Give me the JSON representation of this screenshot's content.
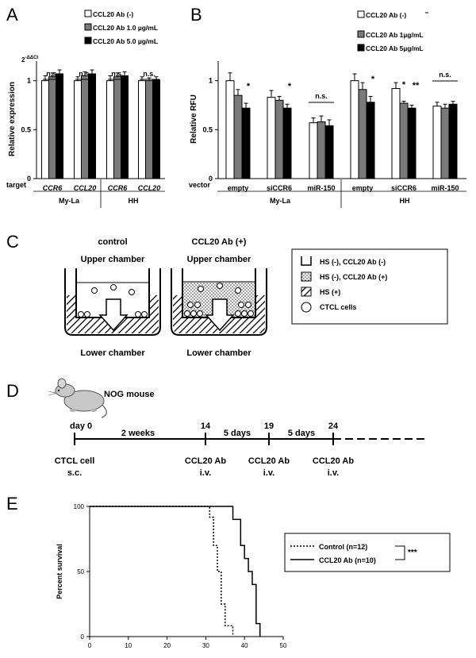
{
  "panels": {
    "A": {
      "letter": "A",
      "y_axis_label": "Relative expression",
      "y_axis_superscript_base": "2",
      "y_axis_superscript_exp": "-ΔΔCt",
      "legend": [
        "CCL20 Ab (-)",
        "CCL20 Ab 1.0 µg/mL",
        "CCL20 Ab 5.0 µg/mL"
      ],
      "row_label": "target",
      "groups": [
        "CCR6",
        "CCL20",
        "CCR6",
        "CCL20"
      ],
      "cell_lines": [
        "My-La",
        "HH"
      ],
      "significance": [
        "n.s.",
        "n.s.",
        "n.s.",
        "n.s."
      ]
    },
    "B": {
      "letter": "B",
      "y_axis_label": "Relative RFU",
      "legend": [
        "CCL20 Ab (-)",
        "CCL20 Ab 1µg/mL",
        "CCL20 Ab 5µg/mL"
      ],
      "row_label": "vector",
      "groups": [
        "empty",
        "siCCR6",
        "miR-150",
        "empty",
        "siCCR6",
        "miR-150"
      ],
      "cell_lines": [
        "My-La",
        "HH"
      ],
      "significance": [
        "*",
        "*",
        "n.s.",
        "*",
        "*",
        "**",
        "n.s."
      ]
    },
    "C": {
      "letter": "C",
      "left_title": "control",
      "right_title": "CCL20 Ab (+)",
      "upper": "Upper chamber",
      "lower": "Lower chamber",
      "legend": [
        "HS (-), CCL20 Ab (-)",
        "HS (-), CCL20 Ab (+)",
        "HS (+)",
        "CTCL cells"
      ]
    },
    "D": {
      "letter": "D",
      "mouse": "NOG mouse",
      "days": [
        "day 0",
        "14",
        "19",
        "24"
      ],
      "intervals": [
        "2 weeks",
        "5 days",
        "5 days"
      ],
      "events": [
        {
          "line1": "CTCL cell",
          "line2": "s.c."
        },
        {
          "line1": "CCL20 Ab",
          "line2": "i.v."
        },
        {
          "line1": "CCL20 Ab",
          "line2": "i.v."
        },
        {
          "line1": "CCL20 Ab",
          "line2": "i.v."
        }
      ]
    },
    "E": {
      "letter": "E",
      "legend": [
        "Control (n=12)",
        "CCL20 Ab (n=10)"
      ],
      "significance": "***"
    }
  },
  "chart_data": [
    {
      "type": "bar",
      "panel": "A",
      "title": "",
      "ylabel": "Relative expression",
      "ylim": [
        0,
        1.2
      ],
      "yticks": [
        0,
        0.5,
        1
      ],
      "categories": [
        "CCR6",
        "CCL20",
        "CCR6",
        "CCL20"
      ],
      "series": [
        {
          "name": "CCL20 Ab (-)",
          "color": "#ffffff",
          "values": [
            1.0,
            1.0,
            1.0,
            1.0
          ],
          "errors": [
            0.05,
            0.04,
            0.05,
            0.04
          ]
        },
        {
          "name": "CCL20 Ab 1.0 µg/mL",
          "color": "#7a7a7a",
          "values": [
            1.04,
            1.05,
            1.04,
            1.0
          ],
          "errors": [
            0.04,
            0.04,
            0.04,
            0.03
          ]
        },
        {
          "name": "CCL20 Ab 5.0 µg/mL",
          "color": "#000000",
          "values": [
            1.07,
            1.07,
            1.05,
            1.01
          ],
          "errors": [
            0.04,
            0.04,
            0.04,
            0.03
          ]
        }
      ]
    },
    {
      "type": "bar",
      "panel": "B",
      "title": "",
      "ylabel": "Relative RFU",
      "ylim": [
        0,
        1.2
      ],
      "yticks": [
        0,
        0.5,
        1
      ],
      "categories": [
        "empty",
        "siCCR6",
        "miR-150",
        "empty",
        "siCCR6",
        "miR-150"
      ],
      "series": [
        {
          "name": "CCL20 Ab (-)",
          "color": "#ffffff",
          "values": [
            1.0,
            0.83,
            0.57,
            1.0,
            0.92,
            0.74
          ],
          "errors": [
            0.08,
            0.07,
            0.05,
            0.07,
            0.06,
            0.04
          ]
        },
        {
          "name": "CCL20 Ab 1µg/mL",
          "color": "#7a7a7a",
          "values": [
            0.85,
            0.8,
            0.58,
            0.91,
            0.77,
            0.72
          ],
          "errors": [
            0.06,
            0.04,
            0.06,
            0.07,
            0.02,
            0.04
          ]
        },
        {
          "name": "CCL20 Ab 5µg/mL",
          "color": "#000000",
          "values": [
            0.72,
            0.72,
            0.54,
            0.78,
            0.72,
            0.76
          ],
          "errors": [
            0.05,
            0.04,
            0.06,
            0.06,
            0.03,
            0.03
          ]
        }
      ]
    },
    {
      "type": "line",
      "panel": "E",
      "title": "",
      "ylabel": "Percent survival",
      "xlabel": "",
      "xlim": [
        0,
        50
      ],
      "ylim": [
        0,
        100
      ],
      "xticks": [
        0,
        10,
        20,
        30,
        40,
        50
      ],
      "yticks": [
        0,
        50,
        100
      ],
      "series": [
        {
          "name": "Control (n=12)",
          "style": "dotted",
          "x": [
            0,
            31,
            31,
            32,
            32,
            33,
            33,
            34,
            34,
            35,
            35,
            37,
            37
          ],
          "y": [
            100,
            100,
            91.7,
            91.7,
            70,
            70,
            50,
            50,
            25,
            25,
            8.3,
            8.3,
            0
          ]
        },
        {
          "name": "CCL20 Ab (n=10)",
          "style": "solid",
          "x": [
            0,
            37,
            37,
            39,
            39,
            40,
            40,
            41,
            41,
            42,
            42,
            43,
            43,
            44,
            44
          ],
          "y": [
            100,
            100,
            90,
            90,
            70,
            70,
            60,
            60,
            50,
            50,
            40,
            40,
            10,
            10,
            0
          ]
        }
      ]
    }
  ]
}
